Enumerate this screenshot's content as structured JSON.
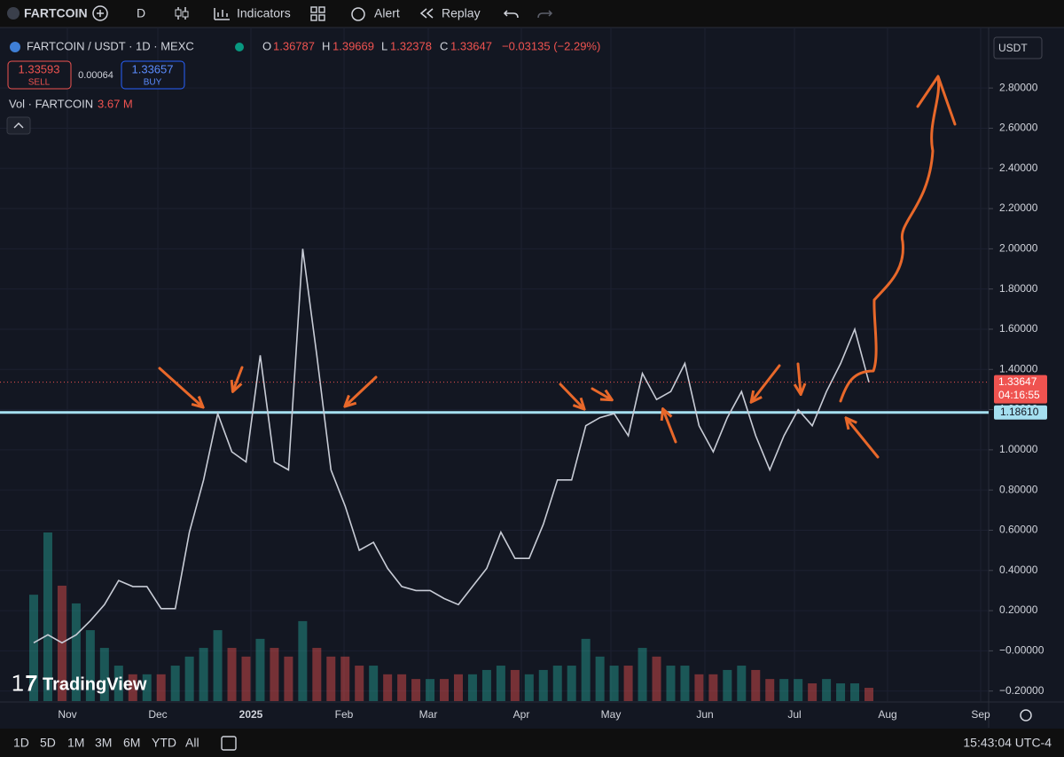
{
  "toolbar": {
    "symbol": "FARTCOIN",
    "interval": "D",
    "indicators": "Indicators",
    "alert": "Alert",
    "replay": "Replay"
  },
  "legend": {
    "title": "FARTCOIN / USDT · 1D · MEXC",
    "open_label": "O",
    "open": "1.36787",
    "high_label": "H",
    "high": "1.39669",
    "low_label": "L",
    "low": "1.32378",
    "close_label": "C",
    "close": "1.33647",
    "change": "−0.03135 (−2.29%)",
    "sell_price": "1.33593",
    "sell": "SELL",
    "spread": "0.00064",
    "buy_price": "1.33657",
    "buy": "BUY",
    "volume_label": "Vol · FARTCOIN",
    "volume": "3.67 M"
  },
  "currency": "USDT",
  "logo": "TradingView",
  "chart_data": {
    "type": "line",
    "x_labels": [
      "Nov",
      "Dec",
      "2025",
      "Feb",
      "Mar",
      "Apr",
      "May",
      "Jun",
      "Jul",
      "Aug",
      "Sep"
    ],
    "series": [
      {
        "name": "FARTCOIN / USDT",
        "color": "#c8ccd6",
        "values": [
          0.04,
          0.08,
          0.04,
          0.08,
          0.15,
          0.23,
          0.35,
          0.32,
          0.32,
          0.21,
          0.21,
          0.59,
          0.85,
          1.18,
          0.99,
          0.94,
          1.47,
          0.94,
          0.9,
          2.0,
          1.47,
          0.9,
          0.72,
          0.5,
          0.54,
          0.41,
          0.32,
          0.3,
          0.3,
          0.26,
          0.23,
          0.32,
          0.41,
          0.59,
          0.46,
          0.46,
          0.63,
          0.85,
          0.85,
          1.12,
          1.16,
          1.18,
          1.07,
          1.38,
          1.25,
          1.29,
          1.43,
          1.12,
          0.99,
          1.16,
          1.29,
          1.07,
          0.9,
          1.07,
          1.2,
          1.12,
          1.29,
          1.43,
          1.6,
          1.33647
        ]
      }
    ],
    "volume": [
      29.4,
      46.6,
      31.9,
      27,
      19.6,
      14.7,
      9.8,
      7.4,
      7.4,
      7.4,
      9.8,
      12.3,
      14.7,
      19.6,
      14.7,
      12.3,
      17.2,
      14.7,
      12.3,
      22.1,
      14.7,
      12.3,
      12.3,
      9.8,
      9.8,
      7.4,
      7.4,
      6.1,
      6.1,
      6.1,
      7.4,
      7.4,
      8.6,
      9.8,
      8.6,
      7.4,
      8.6,
      9.8,
      9.8,
      17.2,
      12.3,
      9.8,
      9.8,
      14.7,
      12.3,
      9.8,
      9.8,
      7.4,
      7.4,
      8.6,
      9.8,
      8.6,
      6.1,
      6.1,
      6.1,
      4.9,
      6.1,
      4.9,
      4.9,
      3.67
    ],
    "up_color": "#26a69a",
    "down_color": "#ef5350",
    "ylim": [
      -0.25,
      3.07
    ],
    "yticks": [
      {
        "value": -0.2,
        "label": "−0.20000"
      },
      {
        "value": 0,
        "label": "−0.00000"
      },
      {
        "value": 0.2,
        "label": "0.20000"
      },
      {
        "value": 0.4,
        "label": "0.40000"
      },
      {
        "value": 0.6,
        "label": "0.60000"
      },
      {
        "value": 0.8,
        "label": "0.80000"
      },
      {
        "value": 1.0,
        "label": "1.00000"
      },
      {
        "value": 1.2,
        "label": "1.20000"
      },
      {
        "value": 1.4,
        "label": "1.40000"
      },
      {
        "value": 1.6,
        "label": "1.60000"
      },
      {
        "value": 1.8,
        "label": "1.80000"
      },
      {
        "value": 2.0,
        "label": "2.00000"
      },
      {
        "value": 2.2,
        "label": "2.20000"
      },
      {
        "value": 2.4,
        "label": "2.40000"
      },
      {
        "value": 2.6,
        "label": "2.60000"
      },
      {
        "value": 2.8,
        "label": "2.80000"
      }
    ],
    "grid": true,
    "last_price": {
      "value": 1.33647,
      "label": "1.33647"
    },
    "countdown": "04:16:55",
    "level": {
      "value": 1.1861,
      "label": "1.18610",
      "color": "#a5dff0"
    }
  },
  "bottom_bar": {
    "ranges": [
      "1D",
      "5D",
      "1M",
      "3M",
      "6M",
      "YTD",
      "All"
    ],
    "clock": "15:43:04 UTC-4"
  }
}
